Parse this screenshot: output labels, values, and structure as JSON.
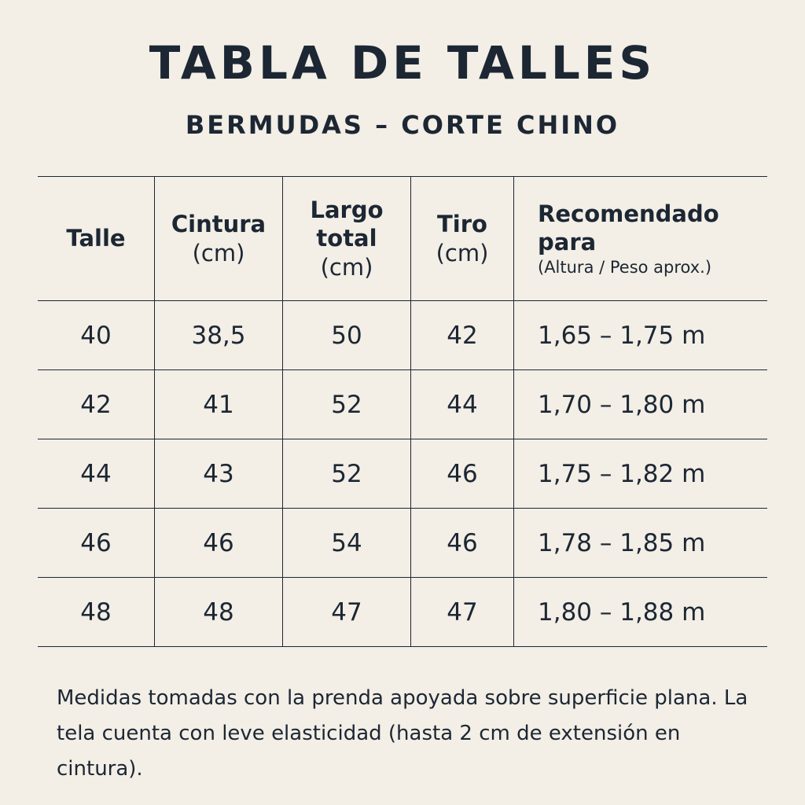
{
  "title": "TABLA DE TALLES",
  "subtitle": "BERMUDAS – CORTE CHINO",
  "table": {
    "headers": [
      {
        "main": "Talle",
        "unit": ""
      },
      {
        "main": "Cintura",
        "unit": "(cm)"
      },
      {
        "main": "Largo total",
        "unit": "(cm)"
      },
      {
        "main": "Tiro",
        "unit": "(cm)"
      },
      {
        "main": "Recomendado para",
        "unit": "(Altura / Peso aprox.)"
      }
    ],
    "rows": [
      [
        "40",
        "38,5",
        "50",
        "42",
        "1,65 – 1,75 m"
      ],
      [
        "42",
        "41",
        "52",
        "44",
        "1,70 – 1,80 m"
      ],
      [
        "44",
        "43",
        "52",
        "46",
        "1,75 – 1,82 m"
      ],
      [
        "46",
        "46",
        "54",
        "46",
        "1,78 – 1,85 m"
      ],
      [
        "48",
        "48",
        "47",
        "47",
        "1,80 – 1,88 m"
      ]
    ]
  },
  "note": "Medidas tomadas con la prenda apoyada sobre superficie plana. La tela cuenta con leve elasticidad (hasta 2 cm de extensión en cintura)."
}
